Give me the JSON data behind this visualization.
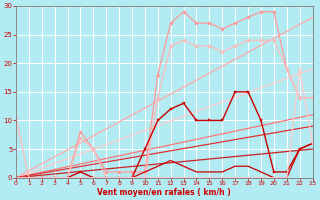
{
  "xlabel": "Vent moyen/en rafales ( km/h )",
  "bg_color": "#b2ebf2",
  "grid_color": "#ffffff",
  "xlim": [
    0,
    23
  ],
  "ylim": [
    0,
    30
  ],
  "yticks": [
    0,
    5,
    10,
    15,
    20,
    25,
    30
  ],
  "xticks": [
    0,
    1,
    2,
    3,
    4,
    5,
    6,
    7,
    8,
    9,
    10,
    11,
    12,
    13,
    14,
    15,
    16,
    17,
    18,
    19,
    20,
    21,
    22,
    23
  ],
  "lines": [
    {
      "x": [
        0,
        23
      ],
      "y": [
        0,
        28
      ],
      "color": "#ffaaaa",
      "lw": 0.9,
      "marker": "None",
      "ms": 0
    },
    {
      "x": [
        0,
        23
      ],
      "y": [
        0,
        19
      ],
      "color": "#ffcccc",
      "lw": 0.9,
      "marker": "None",
      "ms": 0
    },
    {
      "x": [
        0,
        23
      ],
      "y": [
        0,
        11
      ],
      "color": "#ff7777",
      "lw": 0.9,
      "marker": "None",
      "ms": 0
    },
    {
      "x": [
        0,
        23
      ],
      "y": [
        0,
        5
      ],
      "color": "#cc2222",
      "lw": 0.9,
      "marker": "None",
      "ms": 0
    },
    {
      "x": [
        0,
        23
      ],
      "y": [
        0,
        9
      ],
      "color": "#dd3333",
      "lw": 0.9,
      "marker": "None",
      "ms": 0
    },
    {
      "x": [
        0,
        1,
        2,
        3,
        4,
        5,
        6,
        7,
        8,
        9,
        10,
        11,
        12,
        13,
        14,
        15,
        16,
        17,
        18,
        19,
        20,
        21,
        22,
        23
      ],
      "y": [
        0,
        0,
        0,
        0,
        0,
        8,
        5,
        1,
        1,
        1,
        1,
        18,
        27,
        29,
        27,
        27,
        26,
        27,
        28,
        29,
        29,
        19,
        14,
        14
      ],
      "color": "#ff9999",
      "lw": 0.9,
      "marker": "D",
      "ms": 1.8
    },
    {
      "x": [
        0,
        1,
        2,
        3,
        4,
        5,
        6,
        7,
        8,
        9,
        10,
        11,
        12,
        13,
        14,
        15,
        16,
        17,
        18,
        19,
        20,
        21,
        22,
        23
      ],
      "y": [
        10.5,
        0,
        0,
        0,
        0,
        7,
        5,
        0,
        0,
        0,
        0,
        14,
        23,
        24,
        23,
        23,
        22,
        23,
        24,
        24,
        24,
        19,
        14,
        14
      ],
      "color": "#ffbbbb",
      "lw": 0.9,
      "marker": "D",
      "ms": 1.8
    },
    {
      "x": [
        0,
        1,
        2,
        3,
        4,
        5,
        6,
        7,
        8,
        9,
        10,
        11,
        12,
        13,
        14,
        15,
        16,
        17,
        18,
        19,
        20,
        21,
        22,
        23
      ],
      "y": [
        0,
        0,
        0,
        0,
        0,
        1,
        0,
        0,
        0,
        0,
        5,
        10,
        12,
        13,
        10,
        10,
        10,
        15,
        15,
        10,
        1,
        1,
        5,
        6
      ],
      "color": "#cc0000",
      "lw": 1.0,
      "marker": "s",
      "ms": 2.0
    },
    {
      "x": [
        0,
        1,
        2,
        3,
        4,
        5,
        6,
        7,
        8,
        9,
        10,
        11,
        12,
        13,
        14,
        15,
        16,
        17,
        18,
        19,
        20,
        21,
        22,
        23
      ],
      "y": [
        0,
        0,
        0,
        0,
        0,
        0,
        0,
        0,
        0,
        0,
        1,
        2,
        3,
        2,
        1,
        1,
        1,
        2,
        2,
        1,
        0,
        0,
        5,
        6
      ],
      "color": "#cc0000",
      "lw": 0.9,
      "marker": "None",
      "ms": 0
    },
    {
      "x": [
        0,
        1,
        2,
        3,
        4,
        5,
        6,
        7,
        8,
        9,
        10,
        11,
        12,
        13,
        14,
        15,
        16,
        17,
        18,
        19,
        20,
        21,
        22,
        23
      ],
      "y": [
        0,
        0,
        0,
        0,
        0,
        0,
        0,
        0,
        0,
        0,
        0,
        0,
        0,
        0,
        0,
        0,
        0,
        0,
        0,
        0,
        0,
        0,
        19,
        6
      ],
      "color": "#ffcccc",
      "lw": 0.9,
      "marker": "D",
      "ms": 1.8
    }
  ]
}
